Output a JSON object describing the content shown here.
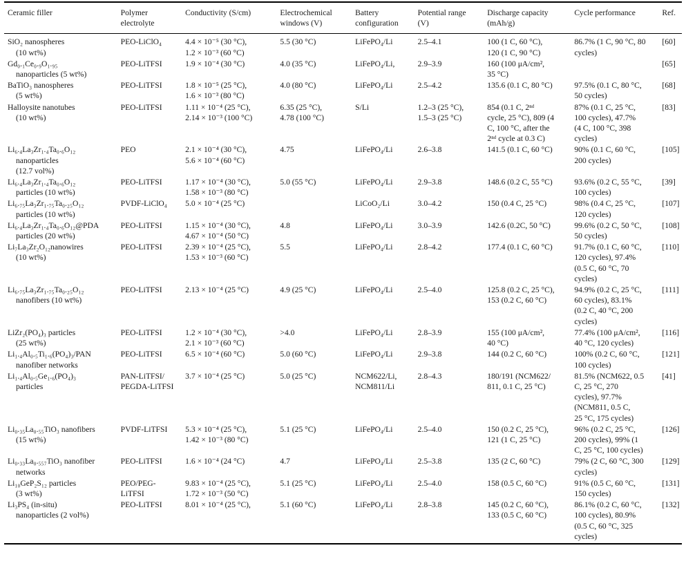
{
  "table": {
    "headers": [
      "Ceramic filler",
      "Polymer\nelectrolyte",
      "Conductivity (S/cm)",
      "Electrochemical\nwindows (V)",
      "Battery\nconfiguration",
      "Potential range\n(V)",
      "Discharge capacity\n(mAh/g)",
      "Cycle performance",
      "Ref."
    ],
    "rows": [
      [
        "SiO₂ nanospheres\n(10 wt%)",
        "PEO-LiClO₄",
        "4.4 × 10⁻⁵ (30 °C),\n1.2 × 10⁻³ (60 °C)",
        "5.5 (30 °C)",
        "LiFePO₄/Li",
        "2.5–4.1",
        "100 (1 C, 60 °C),\n120 (1 C, 90 °C)",
        "86.7% (1 C, 90 °C, 80\ncycles)",
        "[60]"
      ],
      [
        "Gd₀.₁Ce₀.₉O₁.₉₅\nnanoparticles (5 wt%)",
        "PEO-LiTFSI",
        "1.9 × 10⁻⁴ (30 °C)",
        "4.0 (35 °C)",
        "LiFePO₄/Li,",
        "2.9–3.9",
        "160 (100 μA/cm²,\n35 °C)",
        "",
        "[65]"
      ],
      [
        "BaTiO₃ nanospheres\n(5 wt%)",
        "PEO-LiTFSI",
        "1.8 × 10⁻⁵ (25 °C),\n1.6 × 10⁻³ (80 °C)",
        "4.0 (80 °C)",
        "LiFePO₄/Li",
        "2.5–4.2",
        "135.6 (0.1 C, 80 °C)",
        "97.5% (0.1 C, 80 °C,\n50 cycles)",
        "[68]"
      ],
      [
        "Halloysite nanotubes\n(10 wt%)",
        "PEO-LiTFSI",
        "1.11 × 10⁻⁴ (25 °C),\n2.14 × 10⁻³ (100 °C)",
        "6.35 (25 °C),\n4.78 (100 °C)",
        "S/Li",
        "1.2–3 (25 °C),\n1.5–3 (25 °C)",
        "854 (0.1 C, 2ⁿᵈ\ncycle, 25 °C), 809 (4\nC, 100 °C, after the\n2ⁿᵈ cycle at 0.3 C)",
        "87% (0.1 C, 25 °C,\n100 cycles), 47.7%\n(4 C, 100 °C, 398\ncycles)",
        "[83]"
      ],
      [
        "Li₆.₄La₃Zr₁.₄Ta₀.₆O₁₂\nnanoparticles\n(12.7 vol%)",
        "PEO",
        "2.1 × 10⁻⁴ (30 °C),\n5.6 × 10⁻⁴ (60 °C)",
        "4.75",
        "LiFePO₄/Li",
        "2.6–3.8",
        "141.5 (0.1 C, 60 °C)",
        "90% (0.1 C, 60 °C,\n200 cycles)",
        "[105]"
      ],
      [
        "Li₆.₄La₃Zr₁.₄Ta₀.₆O₁₂\nparticles (10 wt%)",
        "PEO-LiTFSI",
        "1.17 × 10⁻⁴ (30 °C),\n1.58 × 10⁻³ (80 °C)",
        "5.0 (55 °C)",
        "LiFePO₄/Li",
        "2.9–3.8",
        "148.6 (0.2 C, 55 °C)",
        "93.6% (0.2 C, 55 °C,\n100 cycles)",
        "[39]"
      ],
      [
        "Li₆.₇₅La₃Zr₁.₇₅Ta₀.₂₅O₁₂\nparticles (10 wt%)",
        "PVDF-LiClO₄",
        "5.0 × 10⁻⁴ (25 °C)",
        "",
        "LiCoO₂/Li",
        "3.0–4.2",
        "150 (0.4 C, 25 °C)",
        "98% (0.4 C, 25 °C,\n120 cycles)",
        "[107]"
      ],
      [
        "Li₆.₄La₃Zr₁.₄Ta₀.₆O₁₂@PDA\nparticles (20 wt%)",
        "PEO-LiTFSI",
        "1.15 × 10⁻⁴ (30 °C),\n4.67 × 10⁻⁴ (50 °C)",
        "4.8",
        "LiFePO₄/Li",
        "3.0–3.9",
        "142.6 (0.2C, 50 °C)",
        "99.6% (0.2 C, 50 °C,\n50 cycles)",
        "[108]"
      ],
      [
        "Li₇La₃Zr₂O₁₂nanowires\n(10 wt%)",
        "PEO-LiTFSI",
        "2.39 × 10⁻⁴ (25 °C),\n1.53 × 10⁻³ (60 °C)",
        "5.5",
        "LiFePO₄/Li",
        "2.8–4.2",
        "177.4 (0.1 C, 60 °C)",
        "91.7% (0.1 C, 60 °C,\n120 cycles), 97.4%\n(0.5 C, 60 °C, 70\ncycles)",
        "[110]"
      ],
      [
        "Li₆.₇₅La₃Zr₁.₇₅Ta₀.₂₅O₁₂\nnanofibers (10 wt%)",
        "PEO-LiTFSI",
        "2.13 × 10⁻⁴ (25 °C)",
        "4.9 (25 °C)",
        "LiFePO₄/Li",
        "2.5–4.0",
        "125.8 (0.2 C, 25 °C),\n153 (0.2 C, 60 °C)",
        "94.9% (0.2 C, 25 °C,\n60 cycles), 83.1%\n(0.2 C, 40 °C, 200\ncycles)",
        "[111]"
      ],
      [
        "LiZr₂(PO₄)₃ particles\n(25 wt%)",
        "PEO-LiTFSI",
        "1.2 × 10⁻⁴ (30 °C),\n2.1 × 10⁻³ (60 °C)",
        ">4.0",
        "LiFePO₄/Li",
        "2.8–3.9",
        "155 (100 μA/cm²,\n40 °C)",
        "77.4% (100 μA/cm²,\n40 °C, 120 cycles)",
        "[116]"
      ],
      [
        "Li₁.₄Al₀.₅Ti₁.₆(PO₄)₃/PAN\nnanofiber networks",
        "PEO-LiTFSI",
        "6.5 × 10⁻⁴ (60 °C)",
        "5.0 (60 °C)",
        "LiFePO₄/Li",
        "2.9–3.8",
        "144 (0.2 C, 60 °C)",
        "100% (0.2 C, 60 °C,\n100 cycles)",
        "[121]"
      ],
      [
        "Li₁.₄Al₀.₅Ge₁.₆(PO₄)₃\nparticles",
        "PAN-LiTFSI/\nPEGDA-LiTFSI",
        "3.7 × 10⁻⁴ (25 °C)",
        "5.0 (25 °C)",
        "NCM622/Li,\nNCM811/Li",
        "2.8–4.3",
        "180/191 (NCM622/\n811, 0.1 C, 25 °C)",
        "81.5% (NCM622, 0.5\nC, 25 °C, 270\ncycles), 97.7%\n(NCM811, 0.5 C,\n25 °C, 175 cycles)",
        "[41]"
      ],
      [
        "Li₀.₃₅La₀.₅₅TiO₃ nanofibers\n(15 wt%)",
        "PVDF-LiTFSI",
        "5.3 × 10⁻⁴ (25 °C),\n1.42 × 10⁻³ (80 °C)",
        "5.1 (25 °C)",
        "LiFePO₄/Li",
        "2.5–4.0",
        "150 (0.2 C, 25 °C),\n121 (1 C, 25 °C)",
        "96% (0.2 C, 25 °C,\n200 cycles), 99% (1\nC, 25 °C, 100 cycles)",
        "[126]"
      ],
      [
        "Li₀.₃₃La₀.₅₅₇TiO₃ nanofiber\nnetworks",
        "PEO-LiTFSI",
        "1.6 × 10⁻⁴ (24 °C)",
        "4.7",
        "LiFePO₄/Li",
        "2.5–3.8",
        "135 (2 C, 60 °C)",
        "79% (2 C, 60 °C, 300\ncycles)",
        "[129]"
      ],
      [
        "Li₁₀GeP₂S₁₂ particles\n(3 wt%)",
        "PEO/PEG-\nLiTFSI",
        "9.83 × 10⁻⁴ (25 °C),\n1.72 × 10⁻³ (50 °C)",
        "5.1 (25 °C)",
        "LiFePO₄/Li",
        "2.5–4.0",
        "158 (0.5 C, 60 °C)",
        "91% (0.5 C, 60 °C,\n150 cycles)",
        "[131]"
      ],
      [
        "Li₃PS₄ (in-situ)\nnanoparticles (2 vol%)",
        "PEO-LiTFSI",
        "8.01 × 10⁻⁴ (25 °C),",
        "5.1 (60 °C)",
        "LiFePO₄/Li",
        "2.8–3.8",
        "145 (0.2 C, 60 °C),\n133 (0.5 C, 60 °C)",
        "86.1% (0.2 C, 60 °C,\n100 cycles), 80.9%\n(0.5 C, 60 °C, 325\ncycles)",
        "[132]"
      ]
    ]
  }
}
